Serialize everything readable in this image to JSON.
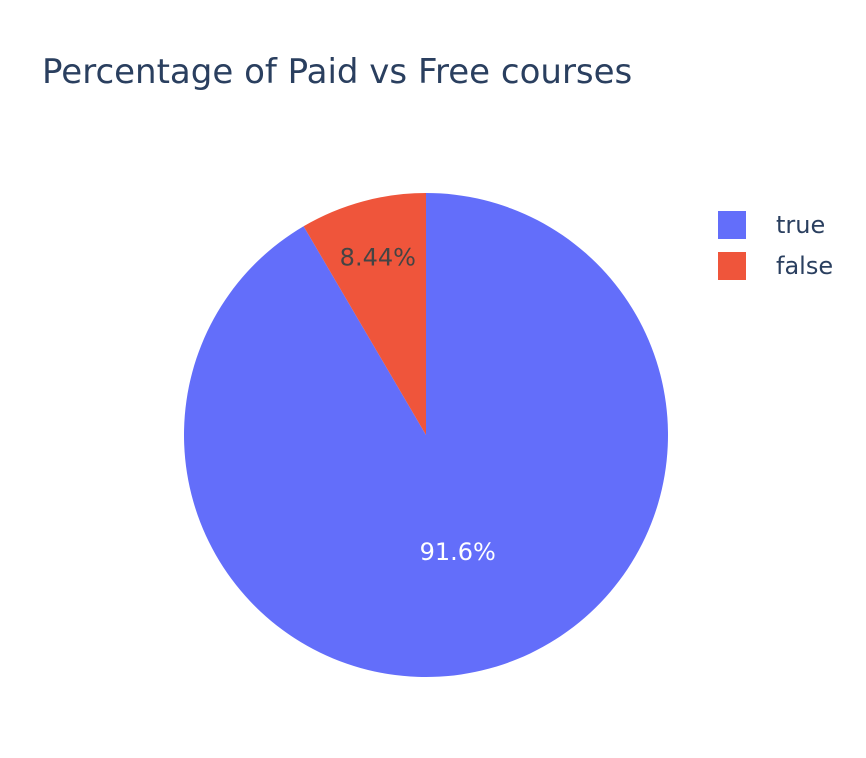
{
  "chart_data": {
    "type": "pie",
    "title": "Percentage of Paid vs Free courses",
    "slices": [
      {
        "label": "true",
        "value": 91.56,
        "display": "91.6%",
        "color": "#636efa",
        "label_color": "#ffffff"
      },
      {
        "label": "false",
        "value": 8.44,
        "display": "8.44%",
        "color": "#ef553b",
        "label_color": "#444444"
      }
    ],
    "direction": "clockwise",
    "start_angle": "top",
    "legend": {
      "placement": "top-right",
      "entries": [
        "true",
        "false"
      ]
    }
  }
}
